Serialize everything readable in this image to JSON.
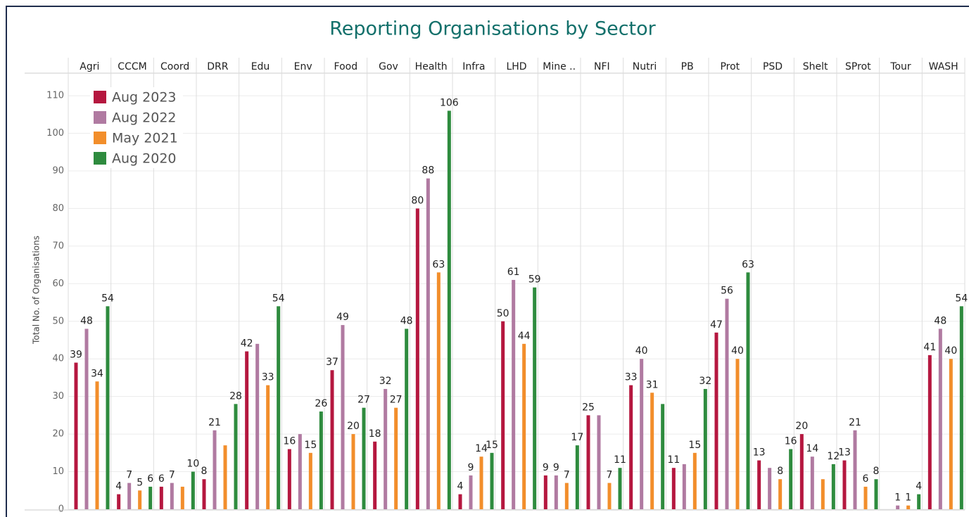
{
  "chart_data": {
    "type": "bar",
    "title": "Reporting Organisations by Sector",
    "y_label": "Total No. of Organisations",
    "categories": [
      "Agri",
      "CCCM",
      "Coord",
      "DRR",
      "Edu",
      "Env",
      "Food",
      "Gov",
      "Health",
      "Infra",
      "LHD",
      "Mine ..",
      "NFI",
      "Nutri",
      "PB",
      "Prot",
      "PSD",
      "Shelt",
      "SProt",
      "Tour",
      "WASH"
    ],
    "series": [
      {
        "name": "Aug 2023",
        "color": "#b5173f",
        "values": [
          39,
          4,
          6,
          8,
          42,
          16,
          37,
          18,
          80,
          4,
          50,
          9,
          25,
          33,
          11,
          47,
          13,
          20,
          13,
          null,
          41
        ],
        "value_labels": [
          "39",
          "4",
          "6",
          "8",
          "42",
          "16",
          "37",
          "18",
          "80",
          "4",
          "50",
          "9",
          "25",
          "33",
          "11",
          "47",
          "13",
          "20",
          "13",
          null,
          "41"
        ]
      },
      {
        "name": "Aug 2022",
        "color": "#b07aa1",
        "values": [
          48,
          7,
          7,
          21,
          44,
          20,
          49,
          32,
          88,
          9,
          61,
          9,
          25,
          40,
          12,
          56,
          11,
          14,
          21,
          1,
          48
        ],
        "value_labels": [
          "48",
          "7",
          "7",
          "21",
          null,
          null,
          "49",
          "32",
          "88",
          "9",
          "61",
          "9",
          null,
          "40",
          null,
          "56",
          null,
          "14",
          "21",
          "1",
          "48"
        ]
      },
      {
        "name": "May 2021",
        "color": "#f28e2b",
        "values": [
          34,
          5,
          6,
          17,
          33,
          15,
          20,
          27,
          63,
          14,
          44,
          7,
          7,
          31,
          15,
          40,
          8,
          8,
          6,
          1,
          40
        ],
        "value_labels": [
          "34",
          "5",
          null,
          null,
          "33",
          "15",
          "20",
          "27",
          "63",
          "14",
          "44",
          "7",
          "7",
          "31",
          "15",
          "40",
          "8",
          null,
          "6",
          "1",
          "40"
        ]
      },
      {
        "name": "Aug 2020",
        "color": "#2e8b3e",
        "values": [
          54,
          6,
          10,
          28,
          54,
          26,
          27,
          48,
          106,
          15,
          59,
          17,
          11,
          28,
          32,
          63,
          16,
          12,
          8,
          4,
          54
        ],
        "value_labels": [
          "54",
          "6",
          "10",
          "28",
          "54",
          "26",
          "27",
          "48",
          "106",
          "15",
          "59",
          "17",
          "11",
          null,
          "32",
          "63",
          "16",
          "12",
          "8",
          "4",
          "54"
        ]
      }
    ],
    "ylim": [
      0,
      116
    ],
    "yticks": [
      0,
      10,
      20,
      30,
      40,
      50,
      60,
      70,
      80,
      90,
      100,
      110
    ],
    "grid": true
  }
}
